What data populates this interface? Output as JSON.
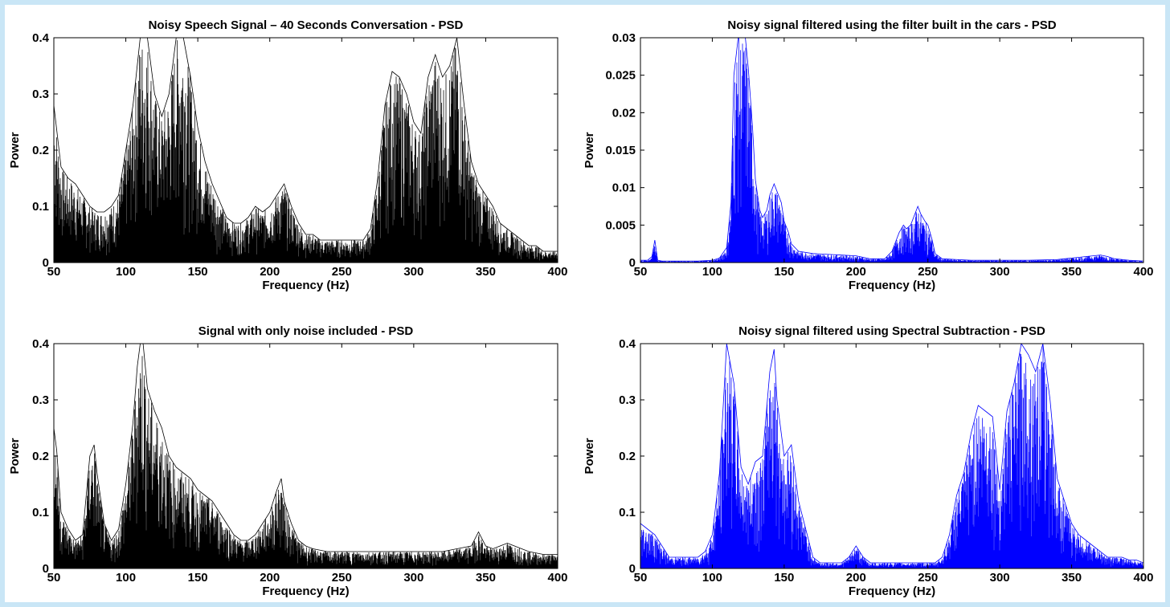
{
  "figure": {
    "background": "#ffffff",
    "page_background": "#c9e6f6"
  },
  "chart_data": [
    {
      "type": "area",
      "title": "Noisy Speech Signal – 40 Seconds Conversation - PSD",
      "xlabel": "Frequency (Hz)",
      "ylabel": "Power",
      "xlim": [
        50,
        400
      ],
      "ylim": [
        0,
        0.4
      ],
      "xticks": [
        "50",
        "100",
        "150",
        "200",
        "250",
        "300",
        "350",
        "400"
      ],
      "yticks": [
        "0",
        "0.1",
        "0.2",
        "0.3",
        "0.4"
      ],
      "grid": false,
      "series": [
        {
          "color": "#000000",
          "x": [
            50,
            55,
            60,
            65,
            70,
            75,
            80,
            85,
            90,
            95,
            100,
            105,
            110,
            115,
            120,
            125,
            130,
            135,
            140,
            145,
            150,
            155,
            160,
            165,
            170,
            175,
            180,
            185,
            190,
            195,
            200,
            205,
            210,
            215,
            220,
            225,
            230,
            235,
            240,
            245,
            250,
            255,
            260,
            265,
            270,
            275,
            280,
            285,
            290,
            295,
            300,
            305,
            310,
            315,
            320,
            325,
            330,
            335,
            340,
            345,
            350,
            355,
            360,
            365,
            370,
            375,
            380,
            385,
            390,
            395,
            400
          ],
          "values": [
            0.28,
            0.17,
            0.15,
            0.14,
            0.12,
            0.1,
            0.09,
            0.09,
            0.1,
            0.12,
            0.2,
            0.28,
            0.4,
            0.4,
            0.3,
            0.26,
            0.3,
            0.4,
            0.4,
            0.33,
            0.24,
            0.18,
            0.14,
            0.11,
            0.08,
            0.07,
            0.07,
            0.08,
            0.1,
            0.09,
            0.1,
            0.12,
            0.14,
            0.1,
            0.07,
            0.05,
            0.05,
            0.04,
            0.04,
            0.04,
            0.04,
            0.04,
            0.04,
            0.04,
            0.06,
            0.15,
            0.28,
            0.34,
            0.33,
            0.3,
            0.25,
            0.23,
            0.33,
            0.37,
            0.33,
            0.35,
            0.4,
            0.28,
            0.18,
            0.14,
            0.12,
            0.1,
            0.07,
            0.06,
            0.05,
            0.04,
            0.03,
            0.03,
            0.02,
            0.02,
            0.02
          ]
        }
      ]
    },
    {
      "type": "area",
      "title": "Noisy signal filtered using the filter built in the cars - PSD",
      "xlabel": "Frequency (Hz)",
      "ylabel": "Power",
      "xlim": [
        50,
        400
      ],
      "ylim": [
        0,
        0.03
      ],
      "xticks": [
        "50",
        "100",
        "150",
        "200",
        "250",
        "300",
        "350",
        "400"
      ],
      "yticks": [
        "0",
        "0.005",
        "0.01",
        "0.015",
        "0.02",
        "0.025",
        "0.03"
      ],
      "grid": false,
      "series": [
        {
          "color": "#0000ff",
          "x": [
            50,
            55,
            58,
            60,
            62,
            65,
            70,
            80,
            90,
            100,
            105,
            110,
            113,
            115,
            118,
            120,
            123,
            125,
            128,
            130,
            133,
            135,
            138,
            140,
            143,
            145,
            148,
            150,
            153,
            155,
            160,
            170,
            180,
            190,
            200,
            210,
            220,
            225,
            228,
            230,
            233,
            235,
            238,
            240,
            243,
            245,
            248,
            250,
            253,
            255,
            260,
            270,
            280,
            300,
            320,
            340,
            345,
            350,
            355,
            360,
            365,
            370,
            375,
            380,
            390,
            400
          ],
          "values": [
            0.0003,
            0.0003,
            0.0008,
            0.003,
            0.0003,
            0.0002,
            0.0002,
            0.0002,
            0.0002,
            0.0003,
            0.0006,
            0.002,
            0.008,
            0.025,
            0.03,
            0.03,
            0.03,
            0.026,
            0.018,
            0.011,
            0.007,
            0.006,
            0.007,
            0.009,
            0.0105,
            0.0095,
            0.008,
            0.0055,
            0.004,
            0.0025,
            0.0015,
            0.0012,
            0.0011,
            0.001,
            0.0009,
            0.0005,
            0.0005,
            0.0015,
            0.003,
            0.004,
            0.005,
            0.0045,
            0.005,
            0.006,
            0.0075,
            0.0065,
            0.0055,
            0.005,
            0.003,
            0.0012,
            0.0005,
            0.0004,
            0.0003,
            0.0003,
            0.0003,
            0.0004,
            0.0005,
            0.0006,
            0.0007,
            0.0008,
            0.0009,
            0.001,
            0.0008,
            0.0005,
            0.0003,
            0.0002
          ]
        }
      ]
    },
    {
      "type": "area",
      "title": "Signal with only noise included - PSD",
      "xlabel": "Frequency (Hz)",
      "ylabel": "Power",
      "xlim": [
        50,
        400
      ],
      "ylim": [
        0,
        0.4
      ],
      "xticks": [
        "50",
        "100",
        "150",
        "200",
        "250",
        "300",
        "350",
        "400"
      ],
      "yticks": [
        "0",
        "0.1",
        "0.2",
        "0.3",
        "0.4"
      ],
      "grid": false,
      "series": [
        {
          "color": "#000000",
          "x": [
            50,
            52,
            55,
            60,
            65,
            70,
            75,
            78,
            80,
            85,
            90,
            95,
            100,
            105,
            108,
            110,
            112,
            115,
            120,
            125,
            130,
            135,
            140,
            145,
            150,
            155,
            160,
            165,
            170,
            175,
            180,
            185,
            190,
            195,
            200,
            205,
            208,
            210,
            215,
            220,
            225,
            230,
            240,
            250,
            260,
            270,
            280,
            290,
            300,
            310,
            320,
            330,
            340,
            345,
            350,
            355,
            360,
            365,
            370,
            375,
            380,
            390,
            400
          ],
          "values": [
            0.25,
            0.21,
            0.1,
            0.07,
            0.05,
            0.06,
            0.2,
            0.22,
            0.17,
            0.08,
            0.05,
            0.07,
            0.15,
            0.26,
            0.36,
            0.4,
            0.4,
            0.32,
            0.28,
            0.25,
            0.2,
            0.18,
            0.17,
            0.16,
            0.14,
            0.13,
            0.12,
            0.1,
            0.08,
            0.06,
            0.05,
            0.05,
            0.06,
            0.08,
            0.1,
            0.14,
            0.16,
            0.12,
            0.08,
            0.05,
            0.04,
            0.035,
            0.03,
            0.03,
            0.03,
            0.03,
            0.03,
            0.03,
            0.03,
            0.03,
            0.03,
            0.035,
            0.04,
            0.065,
            0.04,
            0.035,
            0.04,
            0.045,
            0.04,
            0.035,
            0.03,
            0.025,
            0.025
          ]
        }
      ]
    },
    {
      "type": "area",
      "title": "Noisy signal filtered using Spectral Subtraction - PSD",
      "xlabel": "Frequency (Hz)",
      "ylabel": "Power",
      "xlim": [
        50,
        400
      ],
      "ylim": [
        0,
        0.4
      ],
      "xticks": [
        "50",
        "100",
        "150",
        "200",
        "250",
        "300",
        "350",
        "400"
      ],
      "yticks": [
        "0",
        "0.1",
        "0.2",
        "0.3",
        "0.4"
      ],
      "grid": false,
      "series": [
        {
          "color": "#0000ff",
          "x": [
            50,
            55,
            60,
            65,
            70,
            75,
            80,
            85,
            90,
            95,
            100,
            105,
            110,
            115,
            120,
            125,
            130,
            135,
            140,
            143,
            145,
            150,
            155,
            160,
            165,
            170,
            175,
            180,
            185,
            190,
            195,
            200,
            205,
            210,
            215,
            220,
            225,
            230,
            235,
            240,
            245,
            250,
            255,
            260,
            265,
            270,
            275,
            280,
            285,
            290,
            295,
            300,
            305,
            310,
            315,
            320,
            325,
            330,
            335,
            340,
            345,
            350,
            355,
            360,
            365,
            370,
            375,
            380,
            385,
            390,
            395,
            400
          ],
          "values": [
            0.08,
            0.07,
            0.06,
            0.04,
            0.02,
            0.02,
            0.02,
            0.02,
            0.02,
            0.03,
            0.06,
            0.17,
            0.4,
            0.33,
            0.18,
            0.15,
            0.19,
            0.2,
            0.35,
            0.39,
            0.3,
            0.2,
            0.22,
            0.12,
            0.07,
            0.02,
            0.01,
            0.01,
            0.01,
            0.01,
            0.02,
            0.04,
            0.02,
            0.01,
            0.01,
            0.01,
            0.01,
            0.01,
            0.01,
            0.01,
            0.01,
            0.01,
            0.01,
            0.02,
            0.06,
            0.13,
            0.17,
            0.24,
            0.29,
            0.28,
            0.27,
            0.14,
            0.28,
            0.33,
            0.4,
            0.38,
            0.35,
            0.4,
            0.3,
            0.16,
            0.12,
            0.08,
            0.06,
            0.05,
            0.04,
            0.03,
            0.02,
            0.02,
            0.02,
            0.015,
            0.015,
            0.01
          ]
        }
      ]
    }
  ]
}
